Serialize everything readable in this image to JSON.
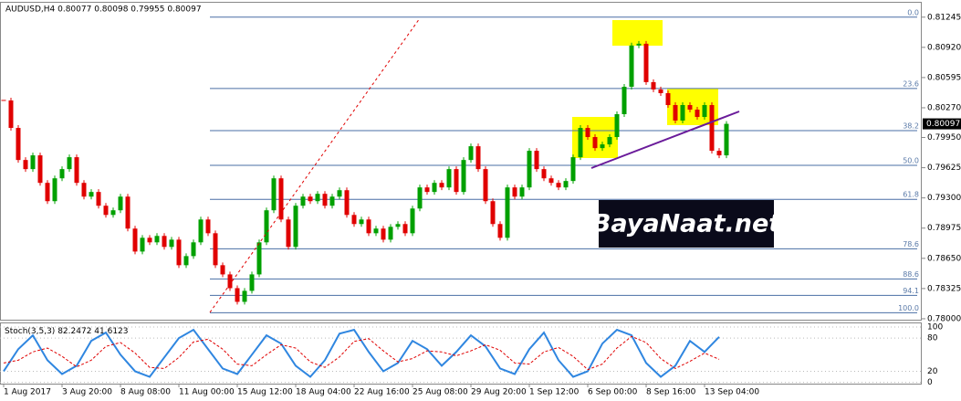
{
  "chart_data": {
    "type": "candlestick",
    "title": "AUDUSD,H4 0.80077 0.80098 0.79955 0.80097",
    "watermark": "BayaNaat.net",
    "up_color": "#00a000",
    "down_color": "#e00000",
    "ylim": [
      0.7797,
      0.814
    ],
    "yticks": [
      0.81245,
      {
        "value": 0.8092,
        "label": "0.80920"
      },
      0.80595,
      {
        "value": 0.8027,
        "label": "0.80270"
      },
      {
        "value": 0.7995,
        "label": "0.79950"
      },
      0.79625,
      {
        "value": 0.793,
        "label": "0.79300"
      },
      0.78975,
      {
        "value": 0.7865,
        "label": "0.78650"
      },
      0.78325,
      {
        "value": 0.78,
        "label": "0.78000"
      }
    ],
    "x_labels": [
      "1 Aug 2017",
      "3 Aug 20:00",
      "8 Aug 08:00",
      "11 Aug 00:00",
      "15 Aug 12:00",
      "18 Aug 04:00",
      "22 Aug 16:00",
      "25 Aug 08:00",
      "29 Aug 20:00",
      "1 Sep 12:00",
      "6 Sep 00:00",
      "8 Sep 16:00",
      "13 Sep 04:00"
    ],
    "closes": [
      0.80349,
      0.80053,
      0.79708,
      0.7961,
      0.79758,
      0.79462,
      0.79265,
      0.79511,
      0.7961,
      0.79738,
      0.79462,
      0.79314,
      0.79364,
      0.79216,
      0.79117,
      0.79167,
      0.79314,
      0.7897,
      0.78723,
      0.78871,
      0.78822,
      0.78891,
      0.78773,
      0.78851,
      0.78576,
      0.78674,
      0.78822,
      0.79068,
      0.7892,
      0.78576,
      0.78477,
      0.78329,
      0.78182,
      0.783,
      0.78477,
      0.78822,
      0.79167,
      0.79511,
      0.79068,
      0.78773,
      0.79216,
      0.79314,
      0.79265,
      0.79344,
      0.79216,
      0.79314,
      0.79383,
      0.79117,
      0.79019,
      0.79068,
      0.7892,
      0.7897,
      0.78851,
      0.78989,
      0.79019,
      0.7892,
      0.79186,
      0.79413,
      0.79364,
      0.79462,
      0.79413,
      0.7961,
      0.79364,
      0.79708,
      0.79856,
      0.7961,
      0.79265,
      0.79019,
      0.78871,
      0.79413,
      0.79314,
      0.79413,
      0.79807,
      0.7961,
      0.79511,
      0.79462,
      0.79413,
      0.79482,
      0.79738,
      0.80053,
      0.79955,
      0.79836,
      0.79876,
      0.79955,
      0.80201,
      0.80496,
      0.8094,
      0.80959,
      0.80546,
      0.80467,
      0.80427,
      0.80299,
      0.80132,
      0.80299,
      0.8025,
      0.80171,
      0.80299,
      0.79807,
      0.79758,
      0.80097
    ],
    "fib_color": "#4a6fa5",
    "fib_levels": [
      {
        "label": "0.0",
        "price": 0.81245
      },
      {
        "label": "23.6",
        "price": 0.80477
      },
      {
        "label": "38.2",
        "price": 0.80024
      },
      {
        "label": "50.0",
        "price": 0.7965
      },
      {
        "label": "61.8",
        "price": 0.79285
      },
      {
        "label": "78.6",
        "price": 0.78753
      },
      {
        "label": "88.6",
        "price": 0.78428
      },
      {
        "label": "94.1",
        "price": 0.78251
      },
      {
        "label": "100.0",
        "price": 0.78064
      }
    ],
    "oscillator": {
      "name": "Stoch(3,5,3)",
      "ylim": [
        -4,
        105
      ],
      "yticks": [
        100,
        80,
        20,
        0
      ],
      "series": [
        {
          "color": "#2f86e0",
          "values": [
            20,
            60,
            85,
            40,
            15,
            30,
            75,
            90,
            50,
            20,
            10,
            45,
            80,
            95,
            60,
            25,
            15,
            50,
            85,
            70,
            30,
            10,
            40,
            88,
            95,
            55,
            20,
            35,
            75,
            60,
            30,
            55,
            85,
            65,
            25,
            15,
            60,
            90,
            40,
            10,
            20,
            70,
            95,
            85,
            35,
            10,
            30,
            75,
            55,
            82.2472
          ]
        },
        {
          "color": "#e00000",
          "values": [
            35,
            40,
            55,
            62,
            47,
            28,
            40,
            65,
            72,
            53,
            27,
            25,
            45,
            73,
            78,
            60,
            33,
            30,
            50,
            68,
            62,
            37,
            27,
            46,
            74,
            79,
            57,
            37,
            43,
            57,
            55,
            48,
            57,
            68,
            58,
            35,
            33,
            55,
            63,
            47,
            23,
            33,
            62,
            83,
            72,
            43,
            25,
            38,
            53,
            41.6123
          ]
        }
      ]
    }
  }
}
